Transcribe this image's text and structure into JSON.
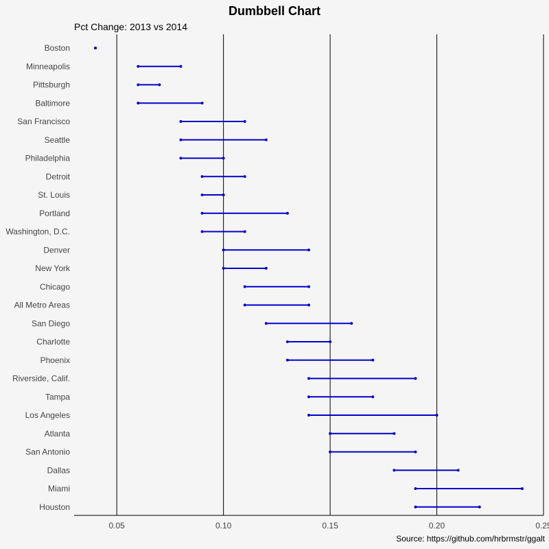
{
  "chart_data": {
    "type": "dumbbell",
    "title": "Dumbbell Chart",
    "subtitle": "Pct Change: 2013 vs 2014",
    "caption": "Source: https://github.com/hrbrmstr/ggalt",
    "xlim": [
      0.03,
      0.25
    ],
    "x_ticks": [
      0.05,
      0.1,
      0.15,
      0.2,
      0.25
    ],
    "x_tick_labels": [
      "0.05",
      "0.10",
      "0.15",
      "0.20",
      "0.25"
    ],
    "grid_vertical": true,
    "colors": {
      "segment": "#0000cc",
      "point": "#0000cc",
      "grid": "#000000",
      "background": "#f6f5f5"
    },
    "rows": [
      {
        "label": "Boston",
        "start": 0.04,
        "end": 0.04
      },
      {
        "label": "Minneapolis",
        "start": 0.06,
        "end": 0.08
      },
      {
        "label": "Pittsburgh",
        "start": 0.06,
        "end": 0.07
      },
      {
        "label": "Baltimore",
        "start": 0.06,
        "end": 0.09
      },
      {
        "label": "San Francisco",
        "start": 0.08,
        "end": 0.11
      },
      {
        "label": "Seattle",
        "start": 0.08,
        "end": 0.12
      },
      {
        "label": "Philadelphia",
        "start": 0.08,
        "end": 0.1
      },
      {
        "label": "Detroit",
        "start": 0.09,
        "end": 0.11
      },
      {
        "label": "St. Louis",
        "start": 0.09,
        "end": 0.1
      },
      {
        "label": "Portland",
        "start": 0.09,
        "end": 0.13
      },
      {
        "label": "Washington, D.C.",
        "start": 0.09,
        "end": 0.11
      },
      {
        "label": "Denver",
        "start": 0.1,
        "end": 0.14
      },
      {
        "label": "New York",
        "start": 0.1,
        "end": 0.12
      },
      {
        "label": "Chicago",
        "start": 0.11,
        "end": 0.14
      },
      {
        "label": "All Metro Areas",
        "start": 0.11,
        "end": 0.14
      },
      {
        "label": "San Diego",
        "start": 0.12,
        "end": 0.16
      },
      {
        "label": "Charlotte",
        "start": 0.13,
        "end": 0.15
      },
      {
        "label": "Phoenix",
        "start": 0.13,
        "end": 0.17
      },
      {
        "label": "Riverside, Calif.",
        "start": 0.14,
        "end": 0.19
      },
      {
        "label": "Tampa",
        "start": 0.14,
        "end": 0.17
      },
      {
        "label": "Los Angeles",
        "start": 0.14,
        "end": 0.2
      },
      {
        "label": "Atlanta",
        "start": 0.15,
        "end": 0.18
      },
      {
        "label": "San Antonio",
        "start": 0.15,
        "end": 0.19
      },
      {
        "label": "Dallas",
        "start": 0.18,
        "end": 0.21
      },
      {
        "label": "Miami",
        "start": 0.19,
        "end": 0.24
      },
      {
        "label": "Houston",
        "start": 0.19,
        "end": 0.22
      }
    ]
  }
}
